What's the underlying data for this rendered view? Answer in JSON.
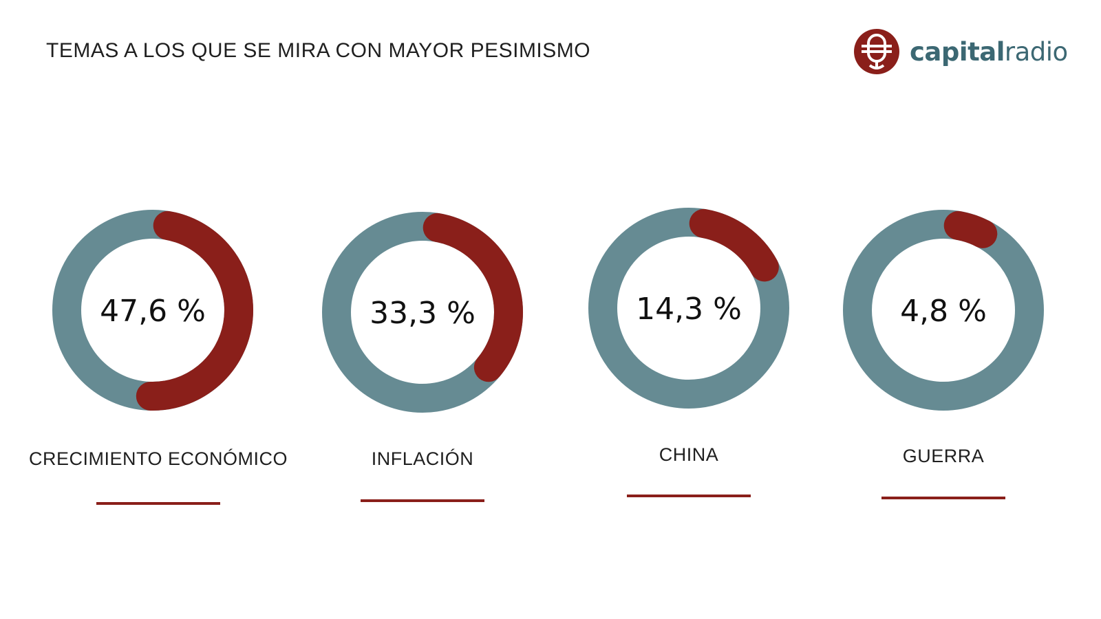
{
  "header": {
    "title": "TEMAS A LOS QUE SE MIRA CON MAYOR PESIMISMO"
  },
  "logo": {
    "text_bold": "capital",
    "text_regular": "radio"
  },
  "colors": {
    "track": "#668b93",
    "accent": "#8a1f1a",
    "underline": "#8a1f1a"
  },
  "chart_data": {
    "type": "pie",
    "title": "TEMAS A LOS QUE SE MIRA CON MAYOR PESIMISMO",
    "categories": [
      "CRECIMIENTO ECONÓMICO",
      "INFLACIÓN",
      "CHINA",
      "GUERRA"
    ],
    "values": [
      47.6,
      33.3,
      14.3,
      4.8
    ],
    "value_labels": [
      "47,6 %",
      "33,3 %",
      "14,3 %",
      "4,8 %"
    ],
    "unit": "%"
  }
}
